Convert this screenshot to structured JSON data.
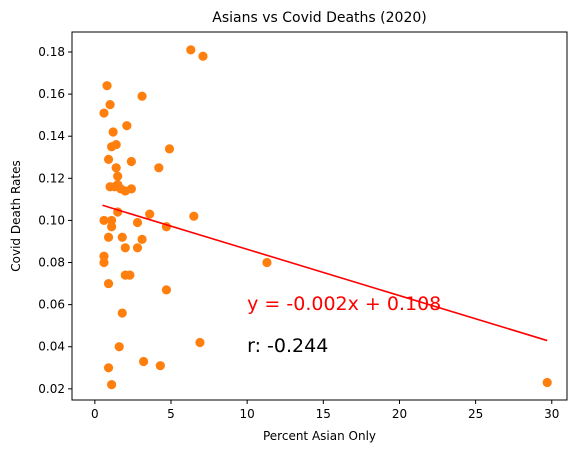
{
  "chart_data": {
    "type": "scatter",
    "title": "Asians vs Covid Deaths (2020)",
    "xlabel": "Percent Asian Only",
    "ylabel": "Covid Death Rates",
    "xlim": [
      -1.5,
      31.0
    ],
    "ylim": [
      0.0147,
      0.1895
    ],
    "xticks": [
      0,
      5,
      10,
      15,
      20,
      25,
      30
    ],
    "yticks": [
      0.02,
      0.04,
      0.06,
      0.08,
      0.1,
      0.12,
      0.14,
      0.16,
      0.18
    ],
    "grid": false,
    "point_color": "#ff7f0e",
    "line_color": "#ff0000",
    "points": [
      [
        0.6,
        0.151
      ],
      [
        0.6,
        0.1
      ],
      [
        0.6,
        0.083
      ],
      [
        0.6,
        0.08
      ],
      [
        0.8,
        0.164
      ],
      [
        0.9,
        0.129
      ],
      [
        0.9,
        0.092
      ],
      [
        0.9,
        0.07
      ],
      [
        0.9,
        0.03
      ],
      [
        1.0,
        0.116
      ],
      [
        1.0,
        0.155
      ],
      [
        1.1,
        0.135
      ],
      [
        1.1,
        0.1
      ],
      [
        1.1,
        0.097
      ],
      [
        1.1,
        0.022
      ],
      [
        1.2,
        0.142
      ],
      [
        1.3,
        0.116
      ],
      [
        1.4,
        0.136
      ],
      [
        1.4,
        0.125
      ],
      [
        1.5,
        0.121
      ],
      [
        1.5,
        0.117
      ],
      [
        1.5,
        0.104
      ],
      [
        1.6,
        0.04
      ],
      [
        1.7,
        0.115
      ],
      [
        1.8,
        0.092
      ],
      [
        1.8,
        0.056
      ],
      [
        2.0,
        0.114
      ],
      [
        2.0,
        0.087
      ],
      [
        2.0,
        0.074
      ],
      [
        2.1,
        0.145
      ],
      [
        2.3,
        0.074
      ],
      [
        2.4,
        0.115
      ],
      [
        2.4,
        0.128
      ],
      [
        2.8,
        0.099
      ],
      [
        2.8,
        0.087
      ],
      [
        3.1,
        0.159
      ],
      [
        3.1,
        0.091
      ],
      [
        3.2,
        0.033
      ],
      [
        3.6,
        0.103
      ],
      [
        4.2,
        0.125
      ],
      [
        4.3,
        0.031
      ],
      [
        4.7,
        0.097
      ],
      [
        4.7,
        0.067
      ],
      [
        4.9,
        0.134
      ],
      [
        6.3,
        0.181
      ],
      [
        6.5,
        0.102
      ],
      [
        6.9,
        0.042
      ],
      [
        7.1,
        0.178
      ],
      [
        11.3,
        0.08
      ],
      [
        29.7,
        0.023
      ]
    ],
    "regression": {
      "slope": -0.002201,
      "intercept": 0.1083,
      "x_range": [
        0.5,
        29.7
      ]
    },
    "annotations": {
      "equation": {
        "text": "y = -0.002x + 0.108",
        "x": 10.0,
        "y": 0.0575
      },
      "r_value": {
        "text": "r: -0.244",
        "x": 10.0,
        "y": 0.0375
      }
    }
  }
}
